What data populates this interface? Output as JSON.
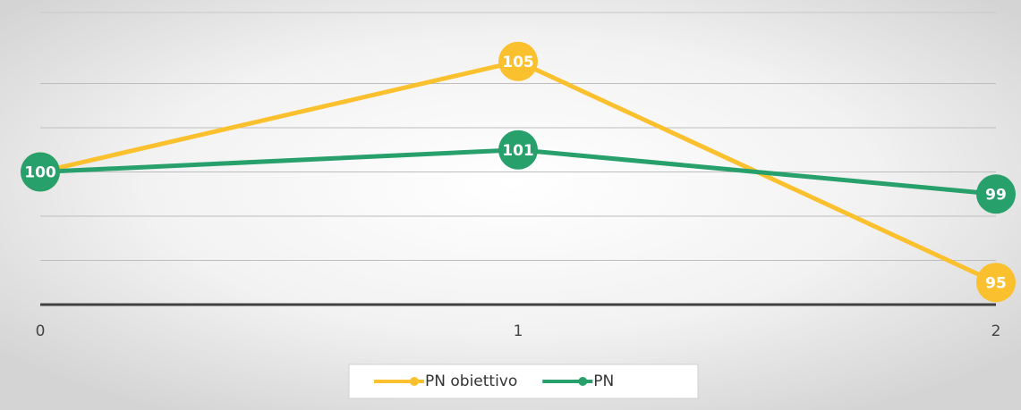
{
  "chart_data": {
    "type": "line",
    "x": [
      0,
      1,
      2
    ],
    "xlim": [
      0,
      2
    ],
    "xticks": [
      0,
      1,
      2
    ],
    "ylim": [
      94,
      106
    ],
    "yticks": [
      94,
      96,
      98,
      100,
      102,
      104
    ],
    "grid": true,
    "legend": "bottom",
    "series": [
      {
        "name": "PN obiettivo",
        "color": "#fbc02d",
        "values": [
          100,
          105,
          95
        ]
      },
      {
        "name": "PN",
        "color": "#27a06b",
        "values": [
          100,
          101,
          99
        ]
      }
    ]
  }
}
